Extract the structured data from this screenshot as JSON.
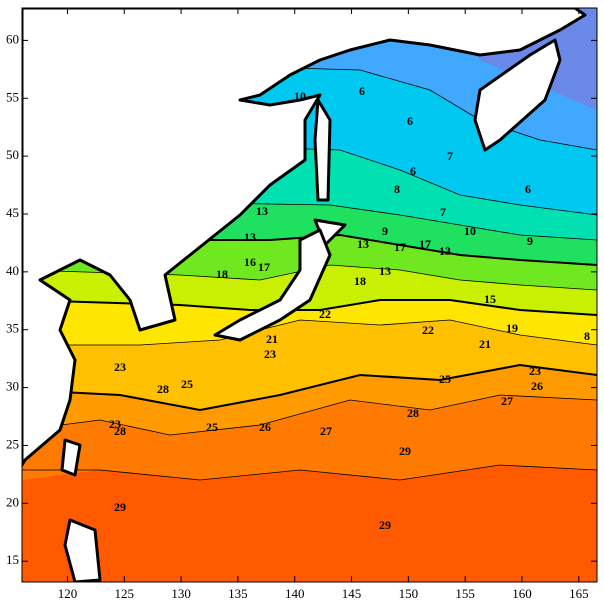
{
  "map": {
    "xlim": [
      116,
      166.6
    ],
    "ylim": [
      13.2,
      62.8
    ],
    "xticks": [
      120,
      125,
      130,
      135,
      140,
      145,
      150,
      155,
      160,
      165
    ],
    "yticks": [
      15,
      20,
      25,
      30,
      35,
      40,
      45,
      50,
      55,
      60
    ],
    "contour_labels": [
      10,
      6,
      6,
      7,
      6,
      6,
      8,
      7,
      9,
      10,
      9,
      13,
      13,
      18,
      16,
      17,
      13,
      17,
      17,
      13,
      18,
      13,
      15,
      19,
      22,
      21,
      22,
      21,
      23,
      23,
      28,
      25,
      23,
      28,
      25,
      26,
      27,
      28,
      25,
      26,
      23,
      27,
      29,
      29,
      29,
      8
    ]
  }
}
